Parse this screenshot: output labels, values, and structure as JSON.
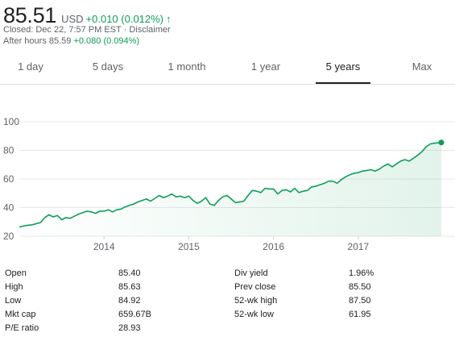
{
  "quote": {
    "price": "85.51",
    "currency": "USD",
    "change": "+0.010 (0.012%)",
    "arrow_icon": "arrow-up-icon",
    "closed_prefix": "Closed: ",
    "closed_time": "Dec 22, 7:57 PM EST",
    "separator": " · ",
    "disclaimer": "Disclaimer",
    "after_hours_label": "After hours 85.59",
    "after_hours_change": "+0.080 (0.094%)",
    "up_color": "#0f9d58"
  },
  "tabs": [
    {
      "label": "1 day"
    },
    {
      "label": "5 days"
    },
    {
      "label": "1 month"
    },
    {
      "label": "1 year"
    },
    {
      "label": "5 years",
      "active": true
    },
    {
      "label": "Max"
    }
  ],
  "chart_data": {
    "type": "area",
    "title": "",
    "xlabel": "",
    "ylabel": "",
    "y_ticks": [
      "100",
      "80",
      "60",
      "40",
      "20"
    ],
    "x_ticks": [
      "2014",
      "2015",
      "2016",
      "2017"
    ],
    "ylim": [
      20,
      100
    ],
    "xlim": [
      2013.0,
      2017.98
    ],
    "grid": true,
    "line_color": "#0f9d58",
    "series": [
      {
        "x": [
          2013.0,
          2013.08,
          2013.15,
          2013.25,
          2013.3,
          2013.35,
          2013.4,
          2013.45,
          2013.5,
          2013.55,
          2013.6,
          2013.65,
          2013.7,
          2013.75,
          2013.8,
          2013.85,
          2013.9,
          2013.95,
          2014.0,
          2014.05,
          2014.1,
          2014.15,
          2014.2,
          2014.25,
          2014.3,
          2014.35,
          2014.4,
          2014.45,
          2014.5,
          2014.55,
          2014.6,
          2014.65,
          2014.7,
          2014.75,
          2014.8,
          2014.85,
          2014.9,
          2014.95,
          2015.0,
          2015.05,
          2015.1,
          2015.15,
          2015.2,
          2015.25,
          2015.3,
          2015.35,
          2015.4,
          2015.45,
          2015.5,
          2015.55,
          2015.6,
          2015.65,
          2015.7,
          2015.75,
          2015.8,
          2015.85,
          2015.9,
          2015.95,
          2016.0,
          2016.05,
          2016.1,
          2016.15,
          2016.2,
          2016.25,
          2016.3,
          2016.35,
          2016.4,
          2016.45,
          2016.5,
          2016.55,
          2016.6,
          2016.65,
          2016.7,
          2016.75,
          2016.8,
          2016.85,
          2016.9,
          2016.95,
          2017.0,
          2017.05,
          2017.1,
          2017.15,
          2017.2,
          2017.25,
          2017.3,
          2017.35,
          2017.4,
          2017.45,
          2017.5,
          2017.55,
          2017.6,
          2017.65,
          2017.7,
          2017.75,
          2017.8,
          2017.85,
          2017.9,
          2017.98
        ],
        "y": [
          26.5,
          27.5,
          28.0,
          29.5,
          33.0,
          35.0,
          33.5,
          34.5,
          31.5,
          33.0,
          32.5,
          34.0,
          35.5,
          36.5,
          37.5,
          37.0,
          36.0,
          37.5,
          37.5,
          38.5,
          37.0,
          38.5,
          39.0,
          40.5,
          41.5,
          42.5,
          44.0,
          45.0,
          46.0,
          44.5,
          46.5,
          48.5,
          47.0,
          48.0,
          49.5,
          47.5,
          48.0,
          47.0,
          48.0,
          45.0,
          43.0,
          44.5,
          47.0,
          42.5,
          41.5,
          45.0,
          47.5,
          48.5,
          46.0,
          43.5,
          44.0,
          44.5,
          48.5,
          52.0,
          51.5,
          50.5,
          53.5,
          53.0,
          53.0,
          49.5,
          52.0,
          52.5,
          51.0,
          53.5,
          50.5,
          51.5,
          52.0,
          54.5,
          55.0,
          56.0,
          57.0,
          58.5,
          58.5,
          57.0,
          59.5,
          61.5,
          63.0,
          64.0,
          64.5,
          65.5,
          66.0,
          66.5,
          65.5,
          67.0,
          69.0,
          70.5,
          68.5,
          70.5,
          72.5,
          73.5,
          72.5,
          74.5,
          76.5,
          79.0,
          82.5,
          84.5,
          85.0,
          85.51
        ]
      }
    ]
  },
  "stats": {
    "left": [
      {
        "label": "Open",
        "value": "85.40"
      },
      {
        "label": "High",
        "value": "85.63"
      },
      {
        "label": "Low",
        "value": "84.92"
      },
      {
        "label": "Mkt cap",
        "value": "659.67B"
      },
      {
        "label": "P/E ratio",
        "value": "28.93"
      }
    ],
    "right": [
      {
        "label": "Div yield",
        "value": "1.96%"
      },
      {
        "label": "Prev close",
        "value": "85.50"
      },
      {
        "label": "52-wk high",
        "value": "87.50"
      },
      {
        "label": "52-wk low",
        "value": "61.95"
      }
    ]
  }
}
